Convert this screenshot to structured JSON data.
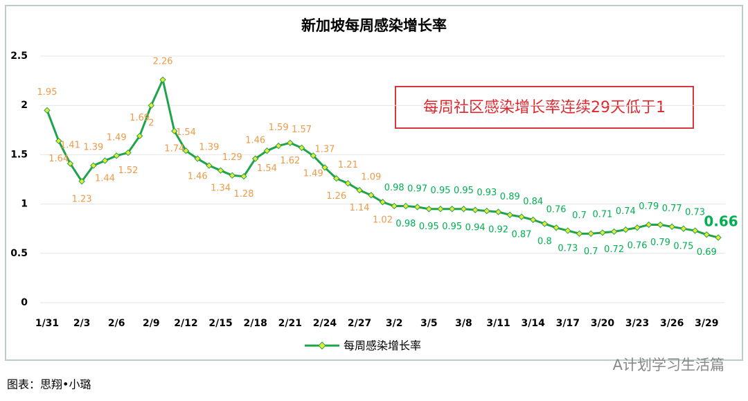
{
  "chart_data": {
    "type": "line",
    "title": "新加坡每周感染增长率",
    "annotation": "每周社区感染增长率连续29天低于1",
    "categories": [
      "1/31",
      null,
      null,
      "2/3",
      null,
      null,
      "2/6",
      null,
      null,
      "2/9",
      null,
      null,
      "2/12",
      null,
      null,
      "2/15",
      null,
      null,
      "2/18",
      null,
      null,
      "2/21",
      null,
      null,
      "2/24",
      null,
      null,
      "2/27",
      null,
      null,
      "3/2",
      null,
      null,
      "3/5",
      null,
      null,
      "3/8",
      null,
      null,
      "3/11",
      null,
      null,
      "3/14",
      null,
      null,
      "3/17",
      null,
      null,
      "3/20",
      null,
      null,
      "3/23",
      null,
      null,
      "3/26",
      null,
      null,
      "3/29",
      null
    ],
    "series": [
      {
        "name": "每周感染增长率",
        "color": "#1fa34a",
        "marker_color": "#e8e83a",
        "values": [
          1.95,
          1.64,
          1.41,
          1.23,
          1.39,
          1.44,
          1.49,
          1.52,
          1.69,
          2,
          2.26,
          1.74,
          1.54,
          1.46,
          1.39,
          1.34,
          1.29,
          1.28,
          1.46,
          1.54,
          1.59,
          1.62,
          1.57,
          1.49,
          1.37,
          1.26,
          1.21,
          1.14,
          1.09,
          1.02,
          0.98,
          0.98,
          0.97,
          0.95,
          0.95,
          0.95,
          0.95,
          0.94,
          0.93,
          0.92,
          0.89,
          0.87,
          0.84,
          0.8,
          0.76,
          0.73,
          0.7,
          0.7,
          0.71,
          0.72,
          0.74,
          0.76,
          0.79,
          0.79,
          0.77,
          0.75,
          0.73,
          0.69,
          0.66
        ]
      }
    ],
    "label_color_above": "#ee9a47",
    "label_color_below": "#00b050",
    "threshold": 1,
    "ylim": [
      0,
      2.5
    ],
    "yticks": [
      0,
      0.5,
      1,
      1.5,
      2,
      {
        "value": 2.5,
        "label": "2.5"
      }
    ],
    "grid": true
  },
  "footer": {
    "credit": "图表：思翔•小璐",
    "watermark": "A计划学习生活篇"
  }
}
